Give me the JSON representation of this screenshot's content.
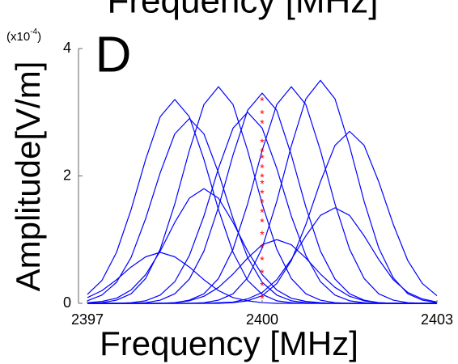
{
  "chart_data": {
    "type": "line",
    "title": "Frequency [MHz]",
    "panel_label": "D",
    "xlabel": "Frequency [MHz]",
    "ylabel": "Amplitude[V/m]",
    "y_scale_label": [
      "(x10",
      "-4",
      ")"
    ],
    "color": "#0000ff",
    "xlim": [
      2397,
      2403
    ],
    "xticks": [
      2397,
      2400,
      2403
    ],
    "ylim": [
      0,
      4
    ],
    "yticks": [
      0,
      2,
      4
    ],
    "x": [
      2397,
      2397.25,
      2397.5,
      2397.75,
      2398,
      2398.25,
      2398.5,
      2398.75,
      2399,
      2399.25,
      2399.5,
      2399.75,
      2400,
      2400.25,
      2400.5,
      2400.75,
      2401,
      2401.25,
      2401.5,
      2401.75,
      2402,
      2402.25,
      2402.5,
      2402.75,
      2403
    ],
    "series": [
      {
        "values": [
          0.14,
          0.36,
          0.8,
          1.47,
          2.26,
          2.93,
          3.2,
          2.93,
          2.26,
          1.47,
          0.8,
          0.36,
          0.14,
          0.04,
          0.01,
          0,
          0,
          0,
          0,
          0,
          0,
          0,
          0,
          0,
          0
        ]
      },
      {
        "values": [
          0.04,
          0.13,
          0.33,
          0.72,
          1.33,
          2.05,
          2.66,
          2.9,
          2.66,
          2.05,
          1.33,
          0.72,
          0.33,
          0.13,
          0.04,
          0.01,
          0,
          0,
          0,
          0,
          0,
          0,
          0,
          0,
          0
        ]
      },
      {
        "values": [
          0,
          0.01,
          0.05,
          0.15,
          0.39,
          0.85,
          1.56,
          2.4,
          3.12,
          3.4,
          3.12,
          2.4,
          1.56,
          0.85,
          0.39,
          0.15,
          0.05,
          0.01,
          0,
          0,
          0,
          0,
          0,
          0,
          0
        ]
      },
      {
        "values": [
          0,
          0,
          0,
          0.01,
          0.04,
          0.13,
          0.34,
          0.75,
          1.37,
          2.12,
          2.75,
          3.0,
          2.75,
          2.12,
          1.37,
          0.75,
          0.34,
          0.13,
          0.04,
          0.01,
          0,
          0,
          0,
          0,
          0
        ]
      },
      {
        "values": [
          0,
          0,
          0,
          0,
          0.01,
          0.05,
          0.15,
          0.38,
          0.82,
          1.51,
          2.33,
          3.03,
          3.3,
          3.03,
          2.33,
          1.51,
          0.82,
          0.38,
          0.15,
          0.05,
          0.01,
          0,
          0,
          0,
          0
        ]
      },
      {
        "values": [
          0,
          0,
          0,
          0,
          0,
          0,
          0.01,
          0.05,
          0.15,
          0.39,
          0.85,
          1.56,
          2.4,
          3.12,
          3.4,
          3.12,
          2.4,
          1.56,
          0.85,
          0.39,
          0.15,
          0.05,
          0.01,
          0,
          0
        ]
      },
      {
        "values": [
          0,
          0,
          0,
          0,
          0,
          0,
          0,
          0,
          0.01,
          0.05,
          0.15,
          0.4,
          0.87,
          1.6,
          2.47,
          3.21,
          3.5,
          3.21,
          2.47,
          1.6,
          0.87,
          0.4,
          0.15,
          0.05,
          0.01
        ]
      },
      {
        "values": [
          0,
          0,
          0,
          0,
          0,
          0,
          0,
          0,
          0,
          0,
          0.01,
          0.04,
          0.12,
          0.31,
          0.67,
          1.24,
          1.91,
          2.48,
          2.7,
          2.48,
          1.91,
          1.24,
          0.67,
          0.31,
          0.12
        ]
      },
      {
        "values": [
          0.01,
          0.03,
          0.08,
          0.21,
          0.45,
          0.82,
          1.27,
          1.65,
          1.8,
          1.65,
          1.27,
          0.82,
          0.45,
          0.21,
          0.08,
          0.03,
          0.01,
          0,
          0,
          0,
          0,
          0,
          0,
          0,
          0
        ]
      },
      {
        "values": [
          0,
          0,
          0,
          0,
          0,
          0,
          0,
          0,
          0,
          0.01,
          0.02,
          0.07,
          0.17,
          0.37,
          0.69,
          1.06,
          1.38,
          1.5,
          1.38,
          1.06,
          0.69,
          0.37,
          0.17,
          0.07,
          0.02
        ]
      },
      {
        "values": [
          0,
          0,
          0,
          0,
          0,
          0,
          0.01,
          0.04,
          0.11,
          0.25,
          0.46,
          0.71,
          0.92,
          1,
          0.92,
          0.71,
          0.46,
          0.25,
          0.11,
          0.04,
          0.01,
          0,
          0,
          0,
          0
        ]
      },
      {
        "values": [
          0.09,
          0.2,
          0.37,
          0.57,
          0.73,
          0.8,
          0.73,
          0.57,
          0.37,
          0.2,
          0.09,
          0.04,
          0.01,
          0,
          0,
          0,
          0,
          0,
          0,
          0,
          0,
          0,
          0,
          0,
          0
        ]
      }
    ],
    "markers": {
      "color": "#ff0000",
      "x": [
        2400,
        2400,
        2400,
        2400,
        2400,
        2400,
        2400,
        2400,
        2400,
        2400,
        2400,
        2400,
        2400,
        2400,
        2400,
        2400,
        2400,
        2400,
        2400
      ],
      "values": [
        3.2,
        3.0,
        2.85,
        2.55,
        2.4,
        2.3,
        2.15,
        2.0,
        1.9,
        1.75,
        1.6,
        1.45,
        1.3,
        1.1,
        0.9,
        0.7,
        0.5,
        0.3,
        0.1
      ]
    }
  }
}
